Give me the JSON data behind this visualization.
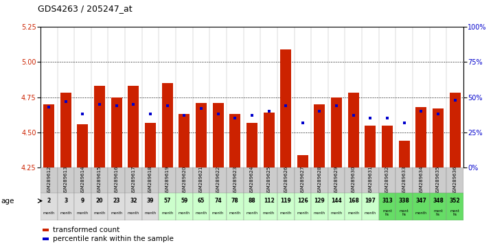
{
  "title": "GDS4263 / 205247_at",
  "samples": [
    "GSM289612",
    "GSM289613",
    "GSM289614",
    "GSM289615",
    "GSM289616",
    "GSM289617",
    "GSM289618",
    "GSM289619",
    "GSM289620",
    "GSM289621",
    "GSM289622",
    "GSM289623",
    "GSM289624",
    "GSM289625",
    "GSM289626",
    "GSM289627",
    "GSM289628",
    "GSM289629",
    "GSM289630",
    "GSM289631",
    "GSM289632",
    "GSM289633",
    "GSM289634",
    "GSM289635",
    "GSM289636"
  ],
  "bar_values": [
    4.7,
    4.78,
    4.56,
    4.83,
    4.75,
    4.83,
    4.57,
    4.85,
    4.63,
    4.71,
    4.71,
    4.63,
    4.57,
    4.64,
    5.09,
    4.34,
    4.7,
    4.75,
    4.78,
    4.55,
    4.55,
    4.44,
    4.68,
    4.67,
    4.78
  ],
  "dot_percentiles": [
    43,
    47,
    38,
    45,
    44,
    45,
    38,
    44,
    37,
    42,
    38,
    35,
    37,
    40,
    44,
    32,
    40,
    44,
    37,
    35,
    35,
    32,
    40,
    38,
    48
  ],
  "ages": [
    "2",
    "3",
    "9",
    "20",
    "23",
    "32",
    "39",
    "57",
    "59",
    "65",
    "74",
    "78",
    "88",
    "112",
    "119",
    "126",
    "129",
    "144",
    "168",
    "197",
    "313",
    "338",
    "347",
    "348",
    "352"
  ],
  "age_units": [
    "month",
    "month",
    "month",
    "month",
    "month",
    "month",
    "month",
    "month",
    "month",
    "month",
    "month",
    "month",
    "month",
    "month",
    "month",
    "month",
    "month",
    "month",
    "month",
    "month",
    "mont\nhs",
    "mont\nhs",
    "month",
    "mont\nhs",
    "mont\nhs"
  ],
  "age_cell_colors": [
    "#DDDDDD",
    "#DDDDDD",
    "#DDDDDD",
    "#DDDDDD",
    "#DDDDDD",
    "#DDDDDD",
    "#DDDDDD",
    "#CCFFCC",
    "#CCFFCC",
    "#CCFFCC",
    "#CCFFCC",
    "#CCFFCC",
    "#CCFFCC",
    "#CCFFCC",
    "#CCFFCC",
    "#CCFFCC",
    "#CCFFCC",
    "#CCFFCC",
    "#CCFFCC",
    "#CCFFCC",
    "#66DD66",
    "#66DD66",
    "#66DD66",
    "#66DD66",
    "#66DD66"
  ],
  "ylim_left": [
    4.25,
    5.25
  ],
  "ylim_right": [
    0,
    100
  ],
  "yticks_left": [
    4.25,
    4.5,
    4.75,
    5.0,
    5.25
  ],
  "yticks_right": [
    0,
    25,
    50,
    75,
    100
  ],
  "hlines": [
    4.5,
    4.75,
    5.0
  ],
  "bar_color": "#CC2200",
  "dot_color": "#0000CC",
  "title_fontsize": 9
}
